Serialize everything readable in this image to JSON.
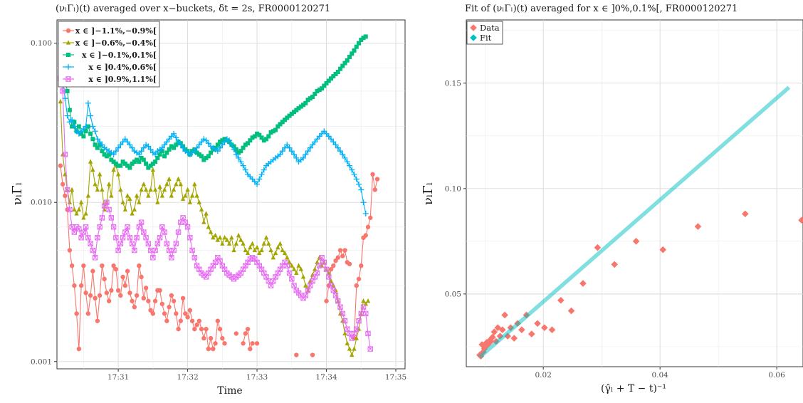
{
  "chart_data": [
    {
      "type": "line",
      "title": "(νₗΓₗ)(t) averaged over x−buckets, δt = 2s, FR0000120271",
      "xlabel": "Time",
      "ylabel": "νₗΓₗ",
      "yscale": "log",
      "ylim": [
        0.0009,
        0.14
      ],
      "xlim": [
        "17:30:07",
        "17:35:08"
      ],
      "x_ticks": [
        "17:31",
        "17:32",
        "17:33",
        "17:34",
        "17:35"
      ],
      "y_ticks": [
        "0.001",
        "0.010",
        "0.100"
      ],
      "grid": true,
      "legend_position": "top-left",
      "x_start": "17:30:10",
      "x_step_seconds": 2,
      "series": [
        {
          "name": "x ∈ ]−1.1%,−0.9%[",
          "color": "#F8766D",
          "marker": "circle",
          "values": [
            0.017,
            0.013,
            0.011,
            0.009,
            0.005,
            0.004,
            0.003,
            0.002,
            0.0012,
            0.003,
            0.004,
            0.0027,
            0.002,
            0.0026,
            0.0037,
            0.0025,
            0.0018,
            0.0026,
            0.004,
            0.0033,
            0.0027,
            0.0024,
            0.0028,
            0.004,
            0.0038,
            0.0028,
            0.0026,
            0.0034,
            0.003,
            0.0037,
            0.0027,
            0.0024,
            0.0022,
            0.0026,
            0.004,
            0.0034,
            0.0025,
            0.0029,
            0.0024,
            0.0021,
            0.002,
            0.0024,
            0.0028,
            0.0028,
            0.0023,
            0.002,
            0.0018,
            0.0022,
            0.0026,
            0.0024,
            0.002,
            0.0016,
            0.0018,
            0.0025,
            0.002,
            0.0019,
            0.0021,
            0.0018,
            0.0016,
            0.0017,
            0.0018,
            0.0016,
            0.0014,
            0.0016,
            0.0012,
            0.0014,
            0.0012,
            0.0013,
            0.0018,
            0.0016,
            0.0014,
            0.0013,
            null,
            null,
            null,
            null,
            0.0015,
            null,
            null,
            0.0013,
            0.0015,
            0.0016,
            0.0012,
            0.0013,
            null,
            0.0013,
            null,
            null,
            null,
            null,
            null,
            null,
            null,
            null,
            null,
            null,
            null,
            null,
            null,
            null,
            null,
            null,
            0.0011,
            null,
            null,
            null,
            null,
            null,
            null,
            0.0011,
            null,
            null,
            null,
            null,
            null,
            0.0024,
            0.003,
            0.0038,
            0.004,
            0.0043,
            0.0045,
            0.005,
            0.0046,
            0.005,
            0.0042,
            0.0041,
            null,
            0.0014,
            0.003,
            0.0033,
            0.004,
            0.006,
            0.0062,
            0.007,
            0.008,
            0.015,
            0.012,
            0.014
          ]
        },
        {
          "name": "x ∈ ]−0.6%,−0.4%[",
          "color": "#A3A500",
          "marker": "triangle",
          "values": [
            0.043,
            0.02,
            0.015,
            0.012,
            0.01,
            0.012,
            0.009,
            0.0085,
            0.009,
            0.01,
            0.008,
            0.0085,
            0.011,
            0.018,
            0.016,
            0.013,
            0.012,
            0.015,
            0.012,
            0.009,
            0.01,
            0.013,
            0.011,
            0.016,
            0.017,
            0.015,
            0.012,
            0.01,
            0.009,
            0.011,
            0.0105,
            0.0085,
            0.009,
            0.011,
            0.01,
            0.012,
            0.013,
            0.012,
            0.011,
            0.012,
            0.016,
            0.012,
            0.01,
            0.0125,
            0.011,
            0.012,
            0.013,
            0.014,
            0.011,
            0.012,
            0.013,
            0.014,
            0.013,
            0.0105,
            0.011,
            0.012,
            0.01,
            0.011,
            0.013,
            0.011,
            0.01,
            0.009,
            0.0075,
            0.0085,
            0.007,
            0.0065,
            0.006,
            0.0062,
            0.0058,
            0.006,
            0.0055,
            0.006,
            0.0058,
            0.0055,
            0.006,
            0.005,
            0.0055,
            0.0062,
            0.0058,
            0.0055,
            0.005,
            0.0048,
            0.0052,
            0.0055,
            0.005,
            0.0052,
            0.0048,
            0.005,
            0.0055,
            0.006,
            0.0055,
            0.005,
            0.0045,
            0.0048,
            0.0052,
            0.0055,
            0.005,
            0.0048,
            0.0045,
            0.0042,
            0.004,
            0.0038,
            0.0036,
            0.004,
            0.0038,
            0.0034,
            0.003,
            0.0028,
            0.0032,
            0.0035,
            0.0038,
            0.0042,
            0.0045,
            0.004,
            0.0042,
            0.0038,
            0.0036,
            0.0032,
            0.003,
            0.0028,
            0.0024,
            0.002,
            0.0018,
            0.0015,
            0.0013,
            0.0012,
            0.0011,
            0.0012,
            0.0014,
            0.0016,
            0.002,
            0.0024,
            0.0023,
            0.0024
          ]
        },
        {
          "name": "x ∈ ]−0.1%,0.1%[",
          "color": "#00BF7D",
          "marker": "square",
          "values": [
            null,
            null,
            0.06,
            0.05,
            0.038,
            0.03,
            0.032,
            0.028,
            0.03,
            0.027,
            0.026,
            0.028,
            0.03,
            0.027,
            0.025,
            0.023,
            0.022,
            0.023,
            0.021,
            0.02,
            0.0195,
            0.02,
            0.0185,
            0.018,
            0.0175,
            0.017,
            0.017,
            0.018,
            0.0175,
            0.017,
            0.0165,
            0.0175,
            0.018,
            0.0185,
            0.018,
            0.019,
            0.0185,
            0.0175,
            0.0165,
            0.017,
            0.0175,
            0.018,
            0.019,
            0.02,
            0.021,
            0.0195,
            0.0205,
            0.0215,
            0.0225,
            0.022,
            0.023,
            0.024,
            0.0235,
            0.0225,
            0.0215,
            0.021,
            0.02,
            0.021,
            0.0215,
            0.0205,
            0.02,
            0.0195,
            0.0185,
            0.019,
            0.0195,
            0.0205,
            0.0215,
            0.022,
            0.023,
            0.024,
            0.0245,
            0.025,
            0.0245,
            0.024,
            0.023,
            0.0225,
            0.0215,
            0.0205,
            0.021,
            0.022,
            0.023,
            0.0235,
            0.0245,
            0.0255,
            0.026,
            0.027,
            0.0265,
            0.0255,
            0.0245,
            0.025,
            0.026,
            0.0275,
            0.028,
            0.0285,
            0.03,
            0.031,
            0.032,
            0.033,
            0.034,
            0.035,
            0.036,
            0.037,
            0.038,
            0.039,
            0.04,
            0.041,
            0.042,
            0.044,
            0.045,
            0.046,
            0.048,
            0.05,
            0.051,
            0.052,
            0.054,
            0.056,
            0.058,
            0.06,
            0.062,
            0.064,
            0.066,
            0.069,
            0.072,
            0.075,
            0.078,
            0.082,
            0.086,
            0.09,
            0.095,
            0.1,
            0.105,
            0.108,
            0.11
          ]
        },
        {
          "name": "x ∈ ]0.4%,0.6%[",
          "color": "#00B0F6",
          "marker": "cross",
          "values": [
            0.1,
            0.06,
            0.045,
            0.035,
            0.032,
            0.033,
            0.03,
            0.028,
            0.027,
            0.028,
            0.029,
            0.03,
            0.042,
            0.035,
            0.03,
            0.028,
            0.025,
            0.024,
            0.023,
            0.022,
            0.0215,
            0.021,
            0.0205,
            0.02,
            0.021,
            0.022,
            0.023,
            0.024,
            0.025,
            0.024,
            0.023,
            0.022,
            0.021,
            0.0205,
            0.02,
            0.021,
            0.022,
            0.023,
            0.0225,
            0.0215,
            0.0205,
            0.02,
            0.021,
            0.0215,
            0.022,
            0.023,
            0.024,
            0.025,
            0.026,
            0.027,
            0.0255,
            0.024,
            0.023,
            0.022,
            0.021,
            0.0205,
            0.02,
            0.0205,
            0.021,
            0.022,
            0.023,
            0.024,
            0.025,
            0.0245,
            0.0235,
            0.0225,
            0.022,
            0.0215,
            0.021,
            0.022,
            0.023,
            0.024,
            0.025,
            0.0245,
            0.023,
            0.0215,
            0.02,
            0.019,
            0.018,
            0.017,
            0.016,
            0.015,
            0.0145,
            0.014,
            0.0135,
            0.013,
            0.014,
            0.015,
            0.016,
            0.017,
            0.0175,
            0.018,
            0.0185,
            0.019,
            0.0195,
            0.02,
            0.021,
            0.022,
            0.023,
            0.022,
            0.021,
            0.02,
            0.019,
            0.018,
            0.0185,
            0.019,
            0.02,
            0.021,
            0.022,
            0.023,
            0.024,
            0.025,
            0.026,
            0.027,
            0.028,
            0.027,
            0.026,
            0.025,
            0.024,
            0.023,
            0.022,
            0.021,
            0.02,
            0.019,
            0.018,
            0.017,
            0.016,
            0.015,
            0.014,
            0.013,
            0.012,
            0.01,
            0.0085
          ]
        },
        {
          "name": "x ∈ ]0.9%,1.1%[",
          "color": "#E76BF3",
          "marker": "square-x",
          "values": [
            0.06,
            0.05,
            0.02,
            0.012,
            0.009,
            0.007,
            0.0065,
            0.007,
            0.0068,
            0.006,
            0.0065,
            0.007,
            0.006,
            0.0055,
            0.005,
            0.0045,
            0.006,
            0.007,
            0.008,
            0.0095,
            0.01,
            0.009,
            0.008,
            0.007,
            0.006,
            0.005,
            0.0055,
            0.006,
            0.0065,
            0.007,
            0.006,
            0.0055,
            0.005,
            0.006,
            0.007,
            0.0075,
            0.0065,
            0.006,
            0.0055,
            0.005,
            0.0045,
            0.005,
            0.0055,
            0.006,
            0.007,
            0.0065,
            0.0055,
            0.005,
            0.0045,
            0.005,
            0.0055,
            0.0065,
            0.0075,
            0.008,
            0.0075,
            0.007,
            0.006,
            0.005,
            0.0045,
            0.004,
            0.0038,
            0.0036,
            0.0035,
            0.0034,
            0.0036,
            0.0038,
            0.004,
            0.0042,
            0.0045,
            0.0043,
            0.004,
            0.0038,
            0.0036,
            0.0035,
            0.0034,
            0.0033,
            0.0034,
            0.0035,
            0.0036,
            0.0038,
            0.004,
            0.0042,
            0.0044,
            0.0045,
            0.0044,
            0.0042,
            0.004,
            0.0038,
            0.0036,
            0.0034,
            0.0032,
            0.003,
            0.0032,
            0.0034,
            0.0036,
            0.0038,
            0.004,
            0.0042,
            0.004,
            0.0036,
            0.0033,
            0.003,
            0.0028,
            0.0027,
            0.0026,
            0.0025,
            0.0026,
            0.0028,
            0.003,
            0.0032,
            0.0034,
            0.0036,
            0.004,
            0.0045,
            0.0042,
            0.0038,
            0.0034,
            0.003,
            0.0028,
            0.0026,
            0.0024,
            0.0022,
            0.002,
            0.0018,
            0.0016,
            0.0015,
            0.0014,
            0.0015,
            0.0016,
            0.0018,
            0.002,
            0.0022,
            0.002,
            0.0015,
            0.0012
          ]
        }
      ]
    },
    {
      "type": "scatter",
      "title": "Fit of (νₗΓₗ)(t) averaged for x ∈ ]0%,0.1%[, FR0000120271",
      "xlabel": "(γ̂ₗ + T − t)⁻¹",
      "ylabel": "νₗΓₗ",
      "xlim": [
        0.0068,
        0.0645
      ],
      "ylim": [
        0.0155,
        0.18
      ],
      "x_ticks": [
        0.02,
        0.04,
        0.06
      ],
      "y_ticks": [
        0.05,
        0.1,
        0.15
      ],
      "grid": true,
      "legend_position": "top-left",
      "series": [
        {
          "name": "Data",
          "color": "#F8766D",
          "marker": "diamond",
          "x": [
            0.0091,
            0.0093,
            0.0095,
            0.0097,
            0.0099,
            0.0101,
            0.0103,
            0.0105,
            0.0108,
            0.011,
            0.0113,
            0.0116,
            0.0119,
            0.0122,
            0.0126,
            0.013,
            0.0134,
            0.0139,
            0.0144,
            0.015,
            0.0156,
            0.0163,
            0.0171,
            0.018,
            0.019,
            0.0202,
            0.0215,
            0.023,
            0.0248,
            0.0268,
            0.0293,
            0.0322,
            0.0359,
            0.0405,
            0.0465,
            0.0546,
            0.0664
          ],
          "y": [
            0.021,
            0.0205,
            0.026,
            0.0225,
            0.024,
            0.025,
            0.027,
            0.026,
            0.028,
            0.0275,
            0.0295,
            0.032,
            0.0275,
            0.034,
            0.03,
            0.033,
            0.04,
            0.03,
            0.034,
            0.029,
            0.036,
            0.033,
            0.04,
            0.031,
            0.036,
            0.034,
            0.033,
            0.047,
            0.042,
            0.055,
            0.072,
            0.064,
            0.075,
            0.071,
            0.082,
            0.088,
            0.085
          ]
        },
        {
          "name": "Fit",
          "color": "#00BFC4",
          "marker": "diamond",
          "line_x": [
            0.0091,
            0.0621
          ],
          "line_y": [
            0.02,
            0.148
          ]
        }
      ]
    }
  ]
}
